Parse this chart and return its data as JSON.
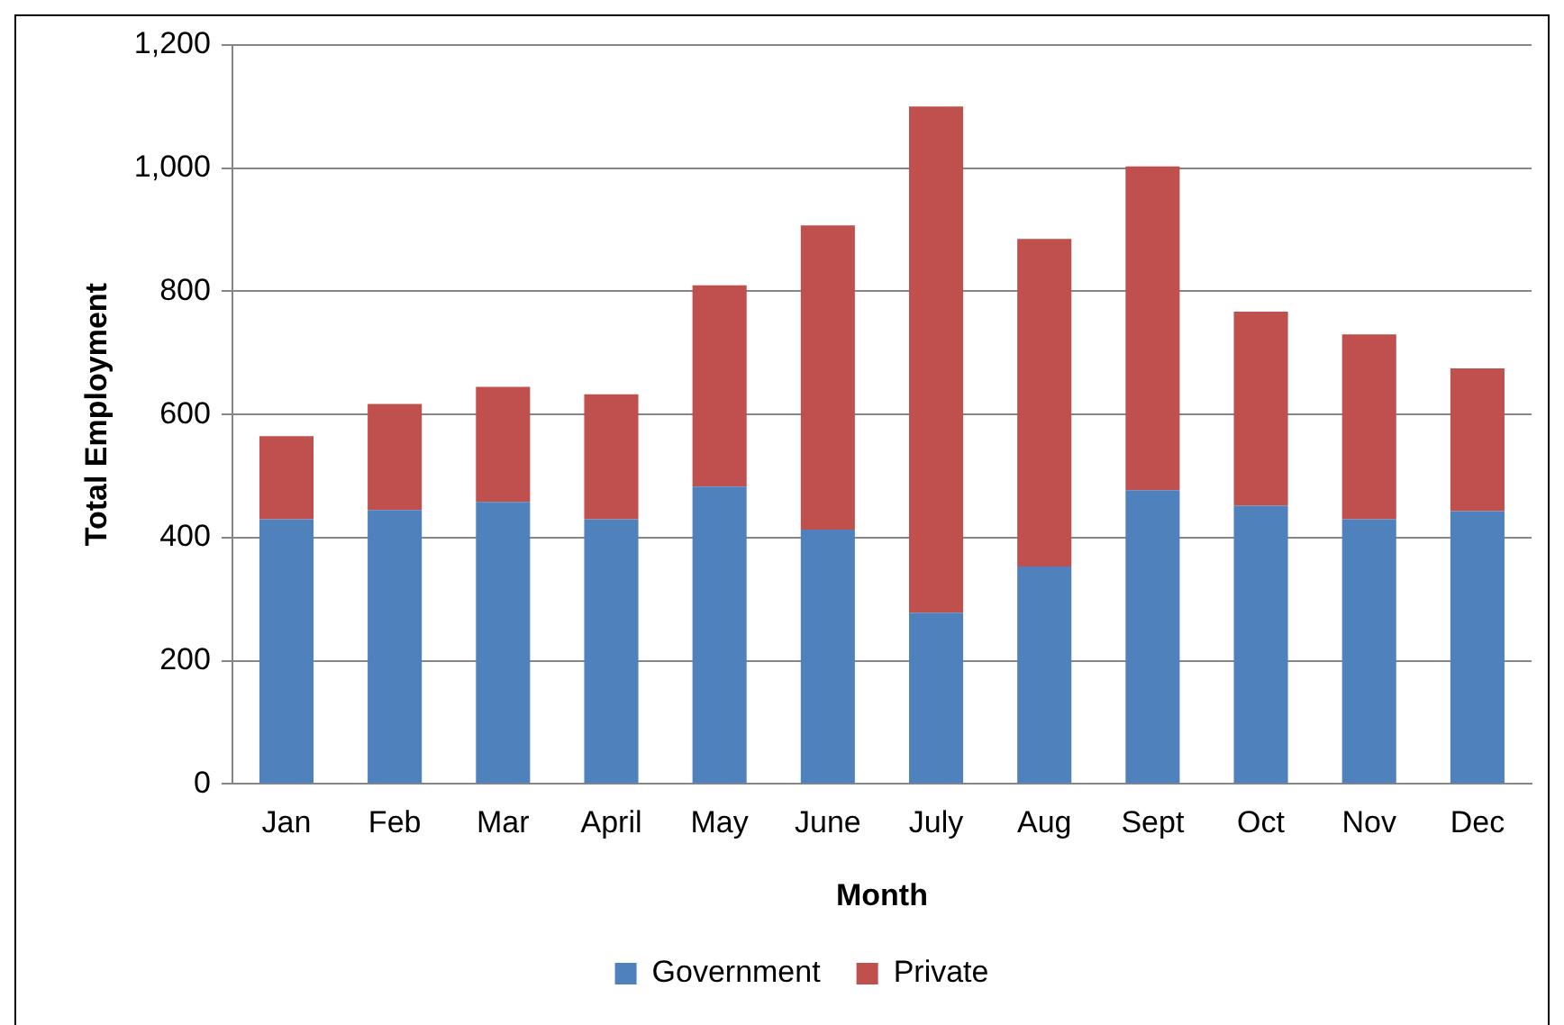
{
  "chart_data": {
    "type": "bar",
    "stacked": true,
    "xlabel": "Month",
    "ylabel": "Total Employment",
    "categories": [
      "Jan",
      "Feb",
      "Mar",
      "April",
      "May",
      "June",
      "July",
      "Aug",
      "Sept",
      "Oct",
      "Nov",
      "Dec"
    ],
    "series": [
      {
        "name": "Government",
        "color": "#4f81bd",
        "values": [
          430,
          445,
          458,
          430,
          483,
          413,
          278,
          353,
          477,
          452,
          430,
          443
        ]
      },
      {
        "name": "Private",
        "color": "#c0504d",
        "values": [
          135,
          172,
          187,
          203,
          327,
          494,
          822,
          532,
          526,
          315,
          300,
          232
        ]
      }
    ],
    "ylim": [
      0,
      1200
    ],
    "yticks": [
      0,
      {
        "value": 200,
        "label": "200"
      },
      {
        "value": 400,
        "label": "400"
      },
      {
        "value": 600,
        "label": "600"
      },
      {
        "value": 800,
        "label": "800"
      },
      {
        "value": 1000,
        "label": "1,000"
      },
      {
        "value": 1200,
        "label": "1,200"
      }
    ],
    "grid": "y",
    "legend": "bottom"
  }
}
